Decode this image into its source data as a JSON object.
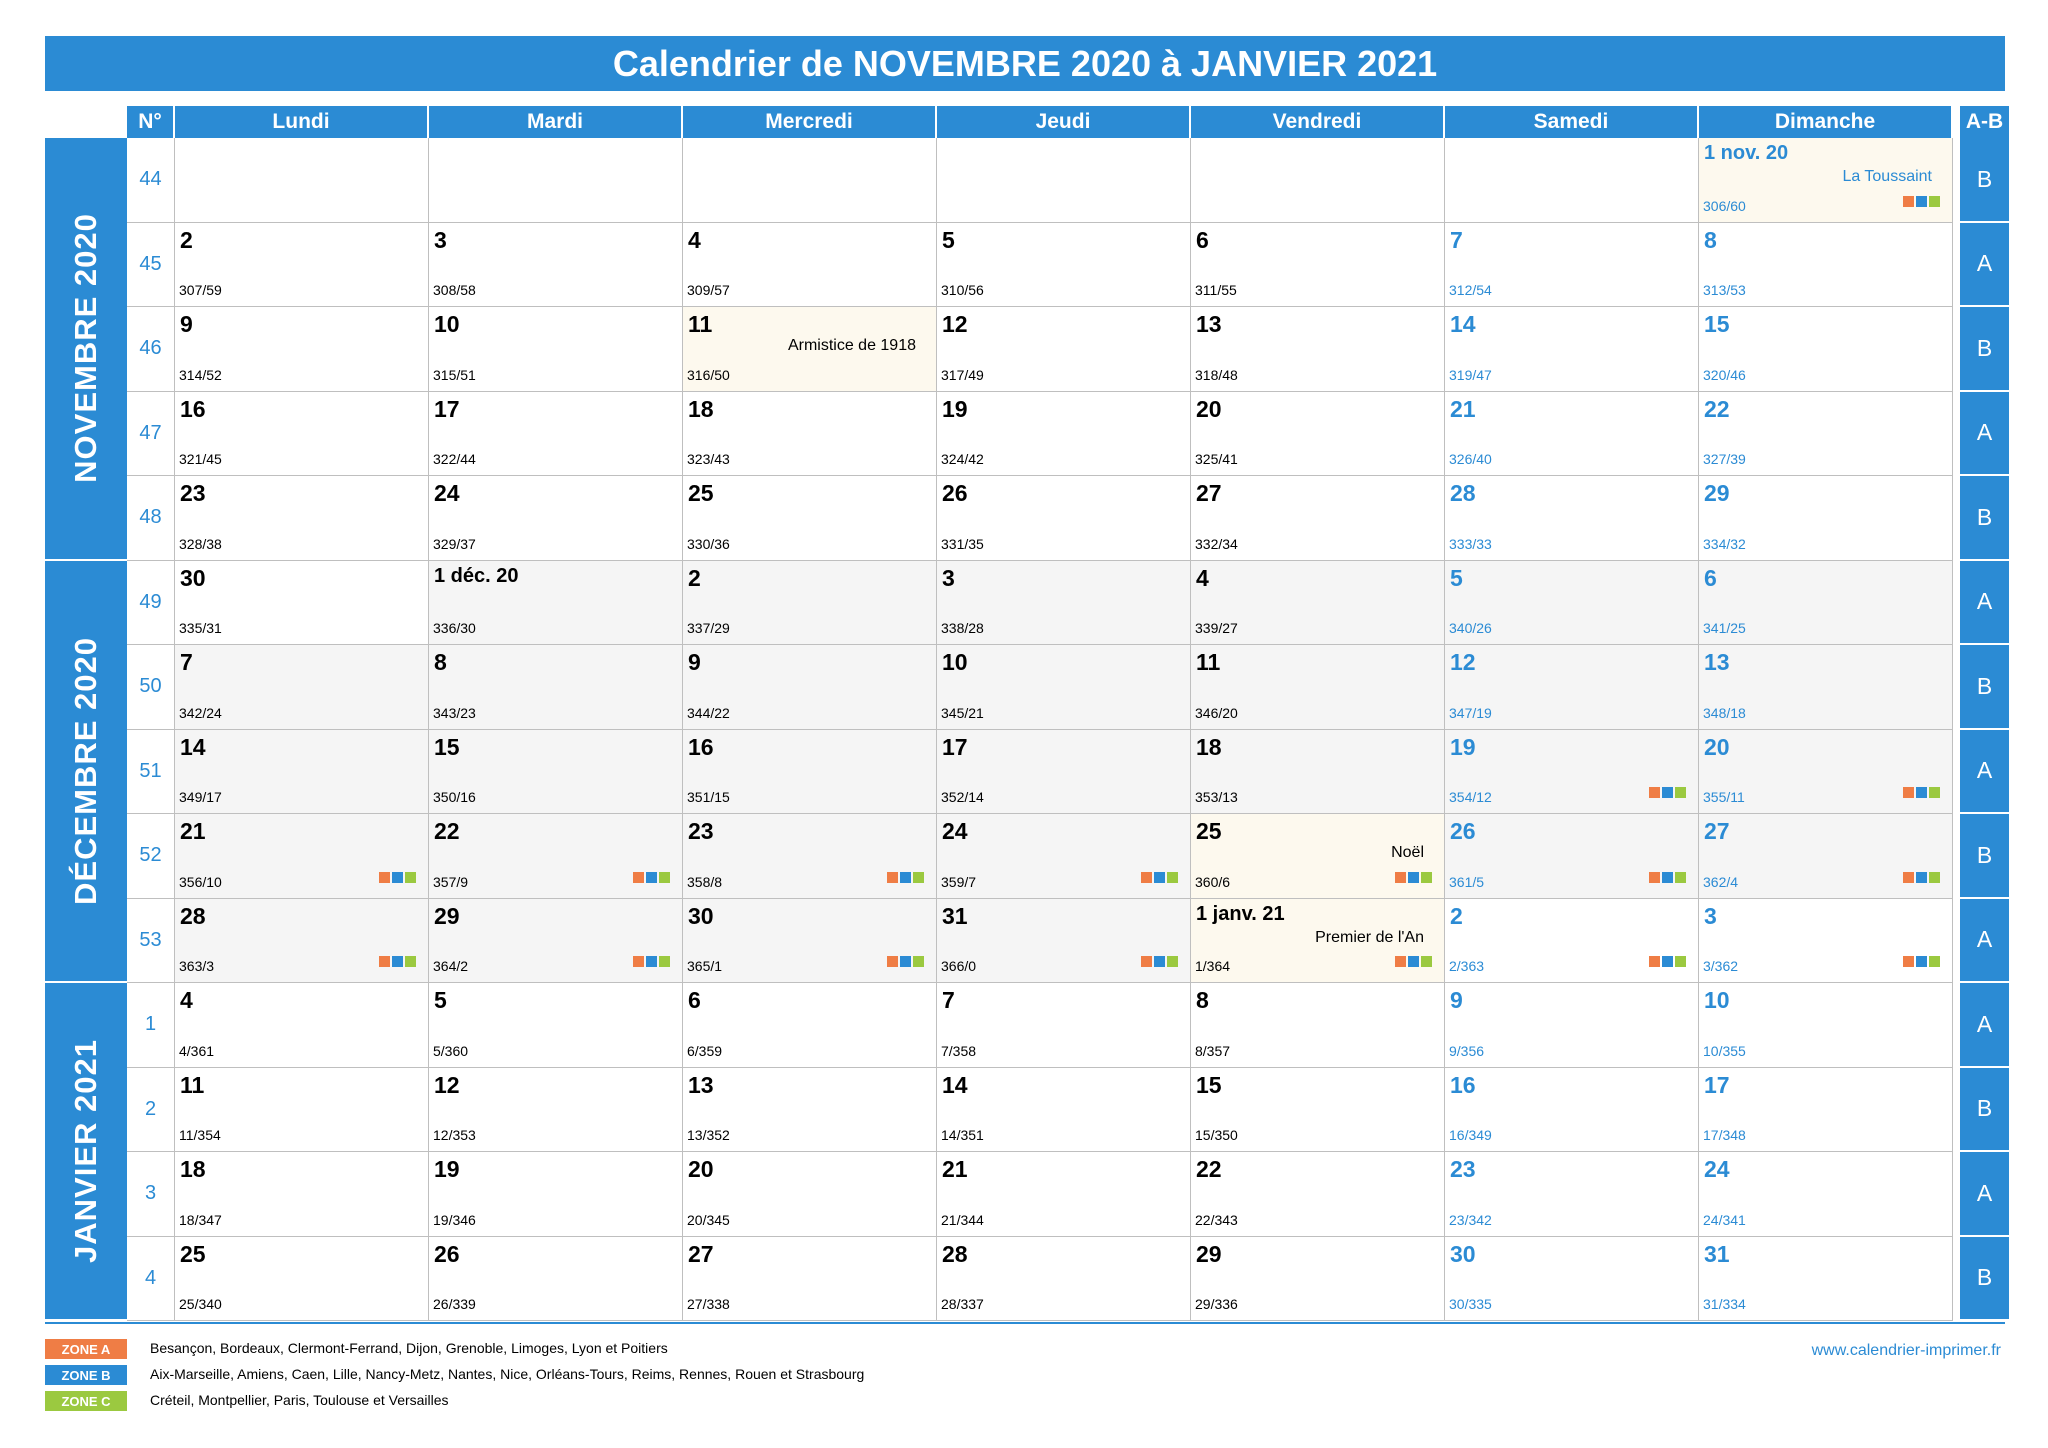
{
  "title": "Calendrier de NOVEMBRE 2020 à JANVIER 2021",
  "headers": {
    "no": "N°",
    "days": [
      "Lundi",
      "Mardi",
      "Mercredi",
      "Jeudi",
      "Vendredi",
      "Samedi",
      "Dimanche"
    ],
    "ab": "A-B"
  },
  "months": [
    {
      "label": "NOVEMBRE 2020",
      "rows": 5
    },
    {
      "label": "DÉCEMBRE 2020",
      "rows": 5
    },
    {
      "label": "JANVIER 2021",
      "rows": 4
    }
  ],
  "colors": {
    "blue": "#2b8bd4",
    "zone_a": "#ef7d45",
    "zone_b": "#2b8bd4",
    "zone_c": "#9bc940",
    "holiday_bg": "#fdf9ee",
    "december_bg": "#f5f5f5"
  },
  "weeks": [
    {
      "no": "44",
      "ab": "B",
      "days": [
        null,
        null,
        null,
        null,
        null,
        null,
        {
          "d": "1 nov. 20",
          "c": "306/60",
          "ev": "La Toussaint",
          "hol": true,
          "z": true
        }
      ]
    },
    {
      "no": "45",
      "ab": "A",
      "days": [
        {
          "d": "2",
          "c": "307/59"
        },
        {
          "d": "3",
          "c": "308/58"
        },
        {
          "d": "4",
          "c": "309/57"
        },
        {
          "d": "5",
          "c": "310/56"
        },
        {
          "d": "6",
          "c": "311/55"
        },
        {
          "d": "7",
          "c": "312/54"
        },
        {
          "d": "8",
          "c": "313/53"
        }
      ]
    },
    {
      "no": "46",
      "ab": "B",
      "days": [
        {
          "d": "9",
          "c": "314/52"
        },
        {
          "d": "10",
          "c": "315/51"
        },
        {
          "d": "11",
          "c": "316/50",
          "ev": "Armistice de 1918",
          "hol": true
        },
        {
          "d": "12",
          "c": "317/49"
        },
        {
          "d": "13",
          "c": "318/48"
        },
        {
          "d": "14",
          "c": "319/47"
        },
        {
          "d": "15",
          "c": "320/46"
        }
      ]
    },
    {
      "no": "47",
      "ab": "A",
      "days": [
        {
          "d": "16",
          "c": "321/45"
        },
        {
          "d": "17",
          "c": "322/44"
        },
        {
          "d": "18",
          "c": "323/43"
        },
        {
          "d": "19",
          "c": "324/42"
        },
        {
          "d": "20",
          "c": "325/41"
        },
        {
          "d": "21",
          "c": "326/40"
        },
        {
          "d": "22",
          "c": "327/39"
        }
      ]
    },
    {
      "no": "48",
      "ab": "B",
      "days": [
        {
          "d": "23",
          "c": "328/38"
        },
        {
          "d": "24",
          "c": "329/37"
        },
        {
          "d": "25",
          "c": "330/36"
        },
        {
          "d": "26",
          "c": "331/35"
        },
        {
          "d": "27",
          "c": "332/34"
        },
        {
          "d": "28",
          "c": "333/33"
        },
        {
          "d": "29",
          "c": "334/32"
        }
      ]
    },
    {
      "no": "49",
      "ab": "A",
      "days": [
        {
          "d": "30",
          "c": "335/31"
        },
        {
          "d": "1 déc. 20",
          "c": "336/30",
          "dec": true
        },
        {
          "d": "2",
          "c": "337/29",
          "dec": true
        },
        {
          "d": "3",
          "c": "338/28",
          "dec": true
        },
        {
          "d": "4",
          "c": "339/27",
          "dec": true
        },
        {
          "d": "5",
          "c": "340/26",
          "dec": true
        },
        {
          "d": "6",
          "c": "341/25",
          "dec": true
        }
      ]
    },
    {
      "no": "50",
      "ab": "B",
      "days": [
        {
          "d": "7",
          "c": "342/24",
          "dec": true
        },
        {
          "d": "8",
          "c": "343/23",
          "dec": true
        },
        {
          "d": "9",
          "c": "344/22",
          "dec": true
        },
        {
          "d": "10",
          "c": "345/21",
          "dec": true
        },
        {
          "d": "11",
          "c": "346/20",
          "dec": true
        },
        {
          "d": "12",
          "c": "347/19",
          "dec": true
        },
        {
          "d": "13",
          "c": "348/18",
          "dec": true
        }
      ]
    },
    {
      "no": "51",
      "ab": "A",
      "days": [
        {
          "d": "14",
          "c": "349/17",
          "dec": true
        },
        {
          "d": "15",
          "c": "350/16",
          "dec": true
        },
        {
          "d": "16",
          "c": "351/15",
          "dec": true
        },
        {
          "d": "17",
          "c": "352/14",
          "dec": true
        },
        {
          "d": "18",
          "c": "353/13",
          "dec": true
        },
        {
          "d": "19",
          "c": "354/12",
          "dec": true,
          "z": true
        },
        {
          "d": "20",
          "c": "355/11",
          "dec": true,
          "z": true
        }
      ]
    },
    {
      "no": "52",
      "ab": "B",
      "days": [
        {
          "d": "21",
          "c": "356/10",
          "dec": true,
          "z": true
        },
        {
          "d": "22",
          "c": "357/9",
          "dec": true,
          "z": true
        },
        {
          "d": "23",
          "c": "358/8",
          "dec": true,
          "z": true
        },
        {
          "d": "24",
          "c": "359/7",
          "dec": true,
          "z": true
        },
        {
          "d": "25",
          "c": "360/6",
          "ev": "Noël",
          "hol": true,
          "z": true
        },
        {
          "d": "26",
          "c": "361/5",
          "dec": true,
          "z": true
        },
        {
          "d": "27",
          "c": "362/4",
          "dec": true,
          "z": true
        }
      ]
    },
    {
      "no": "53",
      "ab": "A",
      "days": [
        {
          "d": "28",
          "c": "363/3",
          "dec": true,
          "z": true
        },
        {
          "d": "29",
          "c": "364/2",
          "dec": true,
          "z": true
        },
        {
          "d": "30",
          "c": "365/1",
          "dec": true,
          "z": true
        },
        {
          "d": "31",
          "c": "366/0",
          "dec": true,
          "z": true
        },
        {
          "d": "1 janv. 21",
          "c": "1/364",
          "ev": "Premier de l'An",
          "hol": true,
          "z": true
        },
        {
          "d": "2",
          "c": "2/363",
          "z": true
        },
        {
          "d": "3",
          "c": "3/362",
          "z": true
        }
      ]
    },
    {
      "no": "1",
      "ab": "A",
      "days": [
        {
          "d": "4",
          "c": "4/361"
        },
        {
          "d": "5",
          "c": "5/360"
        },
        {
          "d": "6",
          "c": "6/359"
        },
        {
          "d": "7",
          "c": "7/358"
        },
        {
          "d": "8",
          "c": "8/357"
        },
        {
          "d": "9",
          "c": "9/356"
        },
        {
          "d": "10",
          "c": "10/355"
        }
      ]
    },
    {
      "no": "2",
      "ab": "B",
      "days": [
        {
          "d": "11",
          "c": "11/354"
        },
        {
          "d": "12",
          "c": "12/353"
        },
        {
          "d": "13",
          "c": "13/352"
        },
        {
          "d": "14",
          "c": "14/351"
        },
        {
          "d": "15",
          "c": "15/350"
        },
        {
          "d": "16",
          "c": "16/349"
        },
        {
          "d": "17",
          "c": "17/348"
        }
      ]
    },
    {
      "no": "3",
      "ab": "A",
      "days": [
        {
          "d": "18",
          "c": "18/347"
        },
        {
          "d": "19",
          "c": "19/346"
        },
        {
          "d": "20",
          "c": "20/345"
        },
        {
          "d": "21",
          "c": "21/344"
        },
        {
          "d": "22",
          "c": "22/343"
        },
        {
          "d": "23",
          "c": "23/342"
        },
        {
          "d": "24",
          "c": "24/341"
        }
      ]
    },
    {
      "no": "4",
      "ab": "B",
      "days": [
        {
          "d": "25",
          "c": "25/340"
        },
        {
          "d": "26",
          "c": "26/339"
        },
        {
          "d": "27",
          "c": "27/338"
        },
        {
          "d": "28",
          "c": "28/337"
        },
        {
          "d": "29",
          "c": "29/336"
        },
        {
          "d": "30",
          "c": "30/335"
        },
        {
          "d": "31",
          "c": "31/334"
        }
      ]
    }
  ],
  "zones": [
    {
      "label": "ZONE A",
      "text": "Besançon, Bordeaux, Clermont-Ferrand, Dijon, Grenoble, Limoges, Lyon et Poitiers"
    },
    {
      "label": "ZONE B",
      "text": "Aix-Marseille, Amiens, Caen, Lille, Nancy-Metz, Nantes, Nice, Orléans-Tours, Reims, Rennes, Rouen et Strasbourg"
    },
    {
      "label": "ZONE C",
      "text": "Créteil, Montpellier, Paris, Toulouse et Versailles"
    }
  ],
  "website": "www.calendrier-imprimer.fr"
}
